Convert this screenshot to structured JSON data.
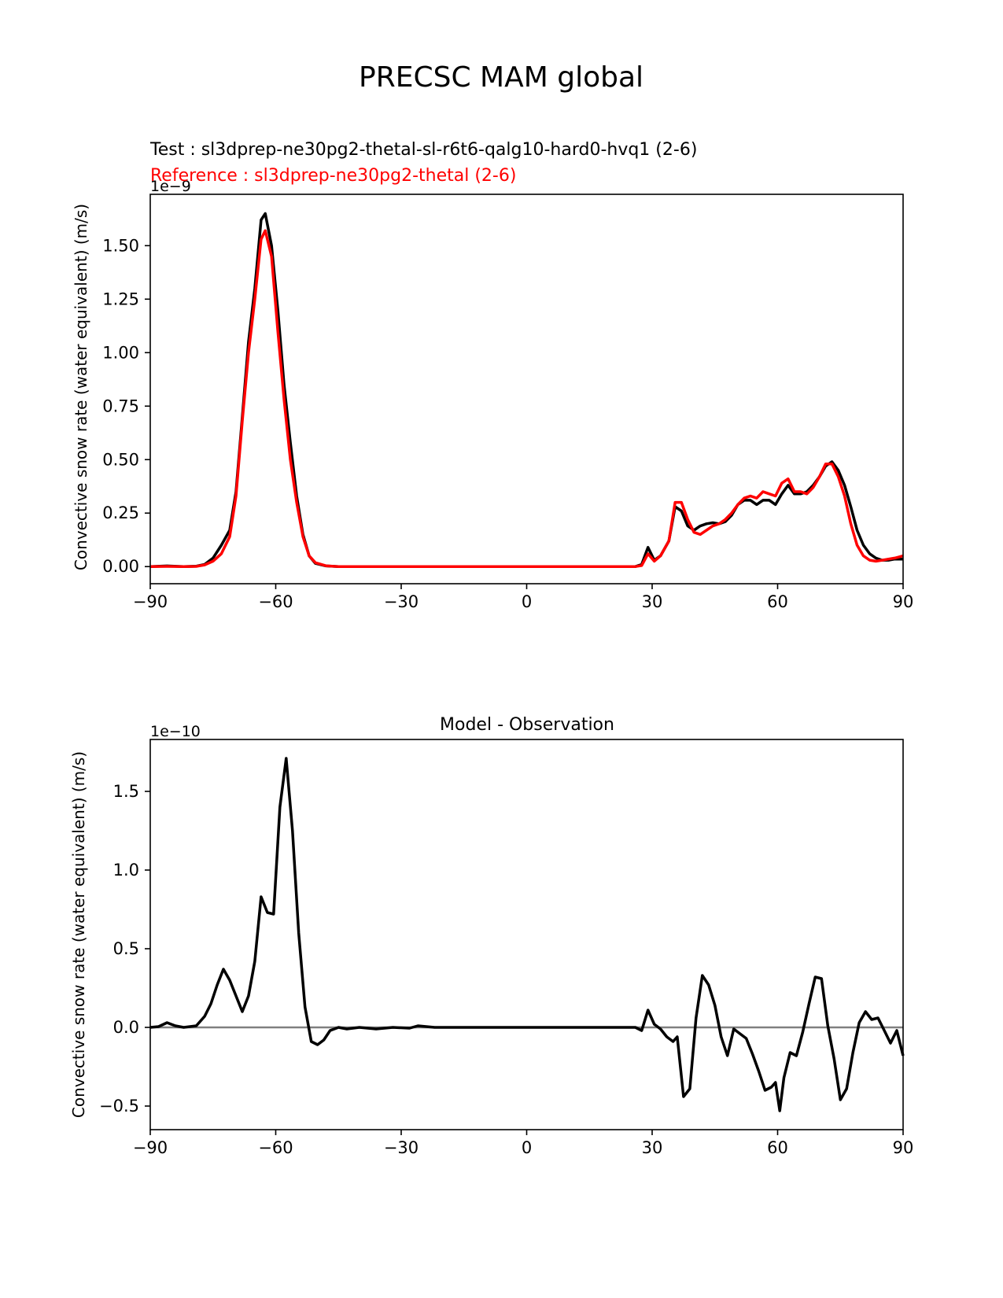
{
  "figure": {
    "title": "PRECSC MAM global"
  },
  "colors": {
    "test": "#000000",
    "reference": "#ff0000",
    "diff": "#000000",
    "zero_line": "#808080"
  },
  "chart_data": [
    {
      "type": "line",
      "test_label": "Test : sl3dprep-ne30pg2-thetal-sl-r6t6-qalg10-hard0-hvq1 (2-6)",
      "reference_label": "Reference : sl3dprep-ne30pg2-thetal (2-6)",
      "title": "",
      "ylabel": "Convective snow rate (water equivalent) (m/s)",
      "xlabel": "",
      "offset_label": "1e−9",
      "scale": 1e-09,
      "xlim": [
        -90,
        90
      ],
      "ylim": [
        -0.08,
        1.74
      ],
      "xticks": [
        -90,
        -60,
        -30,
        0,
        30,
        60,
        90
      ],
      "xtick_labels": [
        "−90",
        "−60",
        "−30",
        "0",
        "30",
        "60",
        "90"
      ],
      "yticks": [
        0.0,
        0.25,
        0.5,
        0.75,
        1.0,
        1.25,
        1.5
      ],
      "ytick_labels": [
        "0.00",
        "0.25",
        "0.50",
        "0.75",
        "1.00",
        "1.25",
        "1.50"
      ],
      "grid": false,
      "series": [
        {
          "name": "Test",
          "points": [
            [
              -90,
              0.0
            ],
            [
              -86,
              0.003
            ],
            [
              -82,
              0.0
            ],
            [
              -79,
              0.002
            ],
            [
              -77,
              0.01
            ],
            [
              -75,
              0.04
            ],
            [
              -73,
              0.1
            ],
            [
              -71,
              0.17
            ],
            [
              -69.5,
              0.35
            ],
            [
              -68,
              0.7
            ],
            [
              -66.5,
              1.05
            ],
            [
              -65,
              1.3
            ],
            [
              -63.5,
              1.62
            ],
            [
              -62.5,
              1.65
            ],
            [
              -61,
              1.5
            ],
            [
              -59.5,
              1.2
            ],
            [
              -58,
              0.85
            ],
            [
              -56.5,
              0.58
            ],
            [
              -55,
              0.33
            ],
            [
              -53.5,
              0.15
            ],
            [
              -52,
              0.05
            ],
            [
              -50.5,
              0.015
            ],
            [
              -48,
              0.003
            ],
            [
              -45,
              0.0
            ],
            [
              -40,
              0.0
            ],
            [
              -30,
              0.0
            ],
            [
              -20,
              0.0
            ],
            [
              -10,
              0.0
            ],
            [
              0,
              0.0
            ],
            [
              10,
              0.0
            ],
            [
              20,
              0.0
            ],
            [
              26,
              0.0
            ],
            [
              27.5,
              0.01
            ],
            [
              29,
              0.09
            ],
            [
              30.5,
              0.03
            ],
            [
              32,
              0.05
            ],
            [
              34,
              0.12
            ],
            [
              35.5,
              0.28
            ],
            [
              37,
              0.26
            ],
            [
              38.5,
              0.19
            ],
            [
              40,
              0.17
            ],
            [
              41.5,
              0.19
            ],
            [
              43,
              0.2
            ],
            [
              44.5,
              0.205
            ],
            [
              46,
              0.2
            ],
            [
              47.5,
              0.21
            ],
            [
              49,
              0.24
            ],
            [
              50.5,
              0.29
            ],
            [
              52,
              0.31
            ],
            [
              53.5,
              0.31
            ],
            [
              55,
              0.29
            ],
            [
              56.5,
              0.31
            ],
            [
              58,
              0.31
            ],
            [
              59.5,
              0.29
            ],
            [
              61,
              0.34
            ],
            [
              62.5,
              0.38
            ],
            [
              64,
              0.34
            ],
            [
              65.5,
              0.34
            ],
            [
              67,
              0.35
            ],
            [
              68.5,
              0.38
            ],
            [
              70,
              0.42
            ],
            [
              71.5,
              0.47
            ],
            [
              73,
              0.49
            ],
            [
              74.5,
              0.45
            ],
            [
              76,
              0.38
            ],
            [
              77.5,
              0.28
            ],
            [
              79,
              0.17
            ],
            [
              80.5,
              0.1
            ],
            [
              82,
              0.06
            ],
            [
              83.5,
              0.04
            ],
            [
              85,
              0.03
            ],
            [
              86.5,
              0.03
            ],
            [
              88,
              0.035
            ],
            [
              90,
              0.035
            ]
          ]
        },
        {
          "name": "Reference",
          "points": [
            [
              -90,
              0.0
            ],
            [
              -86,
              0.001
            ],
            [
              -82,
              0.0
            ],
            [
              -79,
              0.001
            ],
            [
              -77,
              0.008
            ],
            [
              -75,
              0.025
            ],
            [
              -73,
              0.06
            ],
            [
              -71,
              0.14
            ],
            [
              -69.5,
              0.33
            ],
            [
              -68,
              0.68
            ],
            [
              -66.5,
              1.0
            ],
            [
              -65,
              1.25
            ],
            [
              -63.5,
              1.53
            ],
            [
              -62.5,
              1.57
            ],
            [
              -61,
              1.45
            ],
            [
              -59.5,
              1.1
            ],
            [
              -58,
              0.78
            ],
            [
              -56.5,
              0.5
            ],
            [
              -55,
              0.3
            ],
            [
              -53.5,
              0.14
            ],
            [
              -52,
              0.05
            ],
            [
              -50.5,
              0.018
            ],
            [
              -48,
              0.004
            ],
            [
              -45,
              0.0
            ],
            [
              -40,
              0.0
            ],
            [
              -30,
              0.0
            ],
            [
              -20,
              0.0
            ],
            [
              -10,
              0.0
            ],
            [
              0,
              0.0
            ],
            [
              10,
              0.0
            ],
            [
              20,
              0.0
            ],
            [
              26,
              0.0
            ],
            [
              27.5,
              0.005
            ],
            [
              29,
              0.06
            ],
            [
              30.5,
              0.025
            ],
            [
              32,
              0.05
            ],
            [
              34,
              0.12
            ],
            [
              35.5,
              0.3
            ],
            [
              37,
              0.3
            ],
            [
              38.5,
              0.22
            ],
            [
              40,
              0.16
            ],
            [
              41.5,
              0.15
            ],
            [
              43,
              0.17
            ],
            [
              44.5,
              0.19
            ],
            [
              46,
              0.2
            ],
            [
              47.5,
              0.22
            ],
            [
              49,
              0.25
            ],
            [
              50.5,
              0.29
            ],
            [
              52,
              0.32
            ],
            [
              53.5,
              0.33
            ],
            [
              55,
              0.32
            ],
            [
              56.5,
              0.35
            ],
            [
              58,
              0.34
            ],
            [
              59.5,
              0.33
            ],
            [
              61,
              0.39
            ],
            [
              62.5,
              0.41
            ],
            [
              64,
              0.35
            ],
            [
              65.5,
              0.35
            ],
            [
              67,
              0.34
            ],
            [
              68.5,
              0.37
            ],
            [
              70,
              0.42
            ],
            [
              71.5,
              0.48
            ],
            [
              73,
              0.48
            ],
            [
              74.5,
              0.42
            ],
            [
              76,
              0.33
            ],
            [
              77.5,
              0.2
            ],
            [
              79,
              0.1
            ],
            [
              80.5,
              0.05
            ],
            [
              82,
              0.03
            ],
            [
              83.5,
              0.025
            ],
            [
              85,
              0.03
            ],
            [
              86.5,
              0.035
            ],
            [
              88,
              0.04
            ],
            [
              90,
              0.05
            ]
          ]
        }
      ]
    },
    {
      "type": "line",
      "title": "Model - Observation",
      "ylabel": "Convective snow rate (water equivalent) (m/s)",
      "xlabel": "",
      "offset_label": "1e−10",
      "scale": 1e-10,
      "xlim": [
        -90,
        90
      ],
      "ylim": [
        -0.65,
        1.83
      ],
      "xticks": [
        -90,
        -60,
        -30,
        0,
        30,
        60,
        90
      ],
      "xtick_labels": [
        "−90",
        "−60",
        "−30",
        "0",
        "30",
        "60",
        "90"
      ],
      "yticks": [
        -0.5,
        0.0,
        0.5,
        1.0,
        1.5
      ],
      "ytick_labels": [
        "−0.5",
        "0.0",
        "0.5",
        "1.0",
        "1.5"
      ],
      "grid": false,
      "zero_line": true,
      "series": [
        {
          "name": "",
          "points": [
            [
              -90,
              0.0
            ],
            [
              -88,
              0.005
            ],
            [
              -86,
              0.03
            ],
            [
              -84,
              0.01
            ],
            [
              -82,
              0.0
            ],
            [
              -79,
              0.01
            ],
            [
              -77,
              0.07
            ],
            [
              -75.5,
              0.15
            ],
            [
              -74,
              0.27
            ],
            [
              -72.5,
              0.37
            ],
            [
              -71,
              0.3
            ],
            [
              -69.5,
              0.2
            ],
            [
              -68,
              0.1
            ],
            [
              -66.5,
              0.2
            ],
            [
              -65,
              0.42
            ],
            [
              -63.5,
              0.83
            ],
            [
              -62,
              0.73
            ],
            [
              -60.5,
              0.72
            ],
            [
              -59,
              1.4
            ],
            [
              -57.5,
              1.71
            ],
            [
              -56,
              1.25
            ],
            [
              -54.5,
              0.6
            ],
            [
              -53,
              0.13
            ],
            [
              -51.5,
              -0.09
            ],
            [
              -50,
              -0.11
            ],
            [
              -48.5,
              -0.08
            ],
            [
              -47,
              -0.02
            ],
            [
              -45,
              0.0
            ],
            [
              -43,
              -0.01
            ],
            [
              -40,
              0.0
            ],
            [
              -36,
              -0.01
            ],
            [
              -32,
              0.0
            ],
            [
              -28,
              -0.005
            ],
            [
              -26,
              0.01
            ],
            [
              -22,
              0.0
            ],
            [
              -10,
              0.0
            ],
            [
              0,
              0.0
            ],
            [
              10,
              0.0
            ],
            [
              20,
              0.0
            ],
            [
              26,
              0.0
            ],
            [
              27.5,
              -0.02
            ],
            [
              29,
              0.11
            ],
            [
              30.5,
              0.02
            ],
            [
              32,
              -0.01
            ],
            [
              33.5,
              -0.06
            ],
            [
              35,
              -0.09
            ],
            [
              36,
              -0.06
            ],
            [
              37.5,
              -0.44
            ],
            [
              39,
              -0.39
            ],
            [
              40.5,
              0.06
            ],
            [
              42,
              0.33
            ],
            [
              43.5,
              0.27
            ],
            [
              45,
              0.14
            ],
            [
              46.5,
              -0.06
            ],
            [
              48,
              -0.18
            ],
            [
              49.5,
              -0.01
            ],
            [
              51,
              -0.04
            ],
            [
              52.5,
              -0.07
            ],
            [
              54,
              -0.17
            ],
            [
              55.5,
              -0.28
            ],
            [
              57,
              -0.4
            ],
            [
              58.5,
              -0.38
            ],
            [
              59.5,
              -0.35
            ],
            [
              60.5,
              -0.53
            ],
            [
              61.5,
              -0.32
            ],
            [
              63,
              -0.16
            ],
            [
              64.5,
              -0.18
            ],
            [
              66,
              -0.03
            ],
            [
              67.5,
              0.15
            ],
            [
              69,
              0.32
            ],
            [
              70.5,
              0.31
            ],
            [
              72,
              0.01
            ],
            [
              73.5,
              -0.2
            ],
            [
              75,
              -0.46
            ],
            [
              76.5,
              -0.39
            ],
            [
              78,
              -0.16
            ],
            [
              79.5,
              0.03
            ],
            [
              81,
              0.1
            ],
            [
              82.5,
              0.05
            ],
            [
              84,
              0.06
            ],
            [
              85.5,
              -0.02
            ],
            [
              87,
              -0.1
            ],
            [
              88.5,
              -0.02
            ],
            [
              90,
              -0.18
            ]
          ]
        }
      ]
    }
  ]
}
